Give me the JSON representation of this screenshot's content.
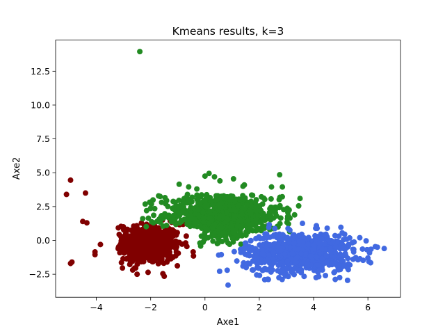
{
  "chart_data": {
    "type": "scatter",
    "title": "Kmeans results, k=3",
    "xlabel": "Axe1",
    "ylabel": "Axe2",
    "xlim": [
      -5.5,
      7.2
    ],
    "ylim": [
      -4.2,
      14.8
    ],
    "xticks": [
      -4,
      -2,
      0,
      2,
      4,
      6
    ],
    "yticks": [
      -2.5,
      0.0,
      2.5,
      5.0,
      7.5,
      10.0,
      12.5
    ],
    "xtick_labels": [
      "−4",
      "−2",
      "0",
      "2",
      "4",
      "6"
    ],
    "ytick_labels": [
      "−2.5",
      "0.0",
      "2.5",
      "5.0",
      "7.5",
      "10.0",
      "12.5"
    ],
    "grid": false,
    "legend": "none",
    "series": [
      {
        "color": "#800000",
        "cluster_center": [
          -2.1,
          -0.3
        ],
        "spread": [
          0.6,
          0.75
        ],
        "n_points": 520,
        "points": [
          [
            -5.1,
            3.4
          ],
          [
            -4.95,
            4.45
          ],
          [
            -4.9,
            -1.6
          ],
          [
            -4.95,
            -1.7
          ],
          [
            -4.4,
            3.5
          ],
          [
            -4.5,
            1.4
          ],
          [
            -4.35,
            1.3
          ],
          [
            -4.05,
            -0.85
          ],
          [
            -4.05,
            -1.05
          ],
          [
            -3.85,
            -0.3
          ],
          [
            -2.95,
            -0.2
          ],
          [
            -2.5,
            -2.5
          ],
          [
            -1.5,
            -2.65
          ],
          [
            -1.4,
            -1.6
          ]
        ]
      },
      {
        "color": "#228b22",
        "cluster_center": [
          0.6,
          1.8
        ],
        "spread": [
          1.1,
          0.9
        ],
        "n_points": 760,
        "points": [
          [
            -2.4,
            13.95
          ],
          [
            -2.15,
            2.2
          ],
          [
            -0.95,
            4.15
          ],
          [
            -0.6,
            3.95
          ],
          [
            -0.3,
            3.8
          ],
          [
            0.0,
            4.75
          ],
          [
            0.15,
            4.95
          ],
          [
            0.35,
            4.7
          ],
          [
            0.55,
            4.4
          ],
          [
            1.05,
            4.55
          ],
          [
            1.4,
            4.0
          ],
          [
            1.45,
            4.1
          ],
          [
            2.45,
            3.95
          ],
          [
            2.75,
            4.85
          ],
          [
            2.85,
            3.95
          ],
          [
            3.5,
            3.1
          ],
          [
            3.45,
            2.55
          ],
          [
            3.1,
            2.25
          ],
          [
            0.5,
            0.1
          ]
        ]
      },
      {
        "color": "#4169e1",
        "cluster_center": [
          3.5,
          -0.9
        ],
        "spread": [
          1.0,
          0.75
        ],
        "n_points": 760,
        "points": [
          [
            0.85,
            -3.3
          ],
          [
            2.2,
            -2.9
          ],
          [
            5.25,
            -2.95
          ],
          [
            5.7,
            0.2
          ],
          [
            6.6,
            -0.6
          ],
          [
            6.35,
            -0.5
          ],
          [
            6.1,
            -1.65
          ],
          [
            6.0,
            -1.3
          ],
          [
            4.5,
            0.9
          ],
          [
            4.3,
            0.1
          ],
          [
            2.5,
            0.3
          ],
          [
            1.5,
            -0.2
          ],
          [
            0.6,
            -1.05
          ],
          [
            1.4,
            -1.9
          ]
        ]
      }
    ]
  }
}
